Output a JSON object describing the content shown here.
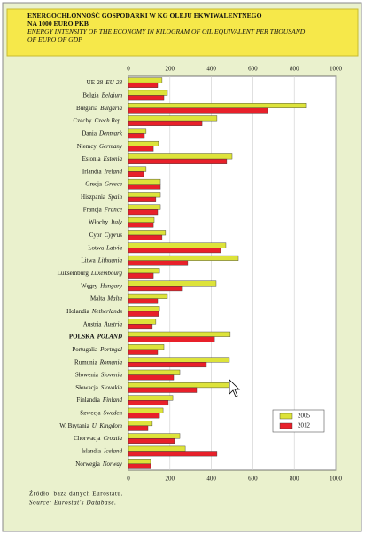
{
  "chart_data": {
    "type": "bar",
    "orientation": "horizontal",
    "title": [
      "ENERGOCHŁONNOŚĆ GOSPODARKI W KG OLEJU EKWIWALENTNEGO",
      "NA 1000 EURO PKB"
    ],
    "subtitle": [
      "ENERGY INTENSITY OF THE ECONOMY IN KILOGRAM OF OIL EQUIVALENT PER THOUSAND",
      "OF EURO OF GDP"
    ],
    "categories": [
      "UE-28",
      "Belgia",
      "Bułgaria",
      "Czechy",
      "Dania",
      "Niemcy",
      "Estonia",
      "Irlandia",
      "Grecja",
      "Hiszpania",
      "Francja",
      "Włochy",
      "Cypr",
      "Łotwa",
      "Litwa",
      "Luksemburg",
      "Węgry",
      "Malta",
      "Holandia",
      "Austria",
      "POLSKA",
      "Portugalia",
      "Rumunia",
      "Słowenia",
      "Słowacja",
      "Finlandia",
      "Szwecja",
      "W. Brytania",
      "Chorwacja",
      "Islandia",
      "Norwegia"
    ],
    "categories_en": [
      "EU-28",
      "Belgium",
      "Bulgaria",
      "Czech Rep.",
      "Denmark",
      "Germany",
      "Estonia",
      "Ireland",
      "Greece",
      "Spain",
      "France",
      "Italy",
      "Cyprus",
      "Latvia",
      "Lithuania",
      "Luxembourg",
      "Hungary",
      "Malta",
      "Netherlands",
      "Austria",
      "POLAND",
      "Portugal",
      "Romania",
      "Slovenia",
      "Slovakia",
      "Finland",
      "Sweden",
      "U. Kingdom",
      "Croatia",
      "Iceland",
      "Norway"
    ],
    "highlight_index": 20,
    "series": [
      {
        "name": "2005",
        "color": "#dde33a",
        "values": [
          162,
          188,
          855,
          427,
          85,
          145,
          500,
          85,
          154,
          154,
          154,
          124,
          179,
          470,
          530,
          150,
          423,
          188,
          150,
          132,
          491,
          171,
          487,
          248,
          491,
          214,
          167,
          115,
          248,
          274,
          107
        ]
      },
      {
        "name": "2012",
        "color": "#e8202a",
        "values": [
          141,
          171,
          671,
          355,
          77,
          120,
          474,
          73,
          154,
          132,
          141,
          120,
          162,
          444,
          286,
          120,
          261,
          141,
          145,
          115,
          415,
          141,
          376,
          218,
          329,
          192,
          150,
          94,
          222,
          427,
          107
        ]
      }
    ],
    "xlim": [
      0,
      1000
    ],
    "xticks": [
      0,
      200,
      400,
      600,
      800,
      1000
    ],
    "grid": true,
    "source": "Źródło: baza danych Eurostatu.",
    "source_en": "Source: Eurostat's Database."
  }
}
